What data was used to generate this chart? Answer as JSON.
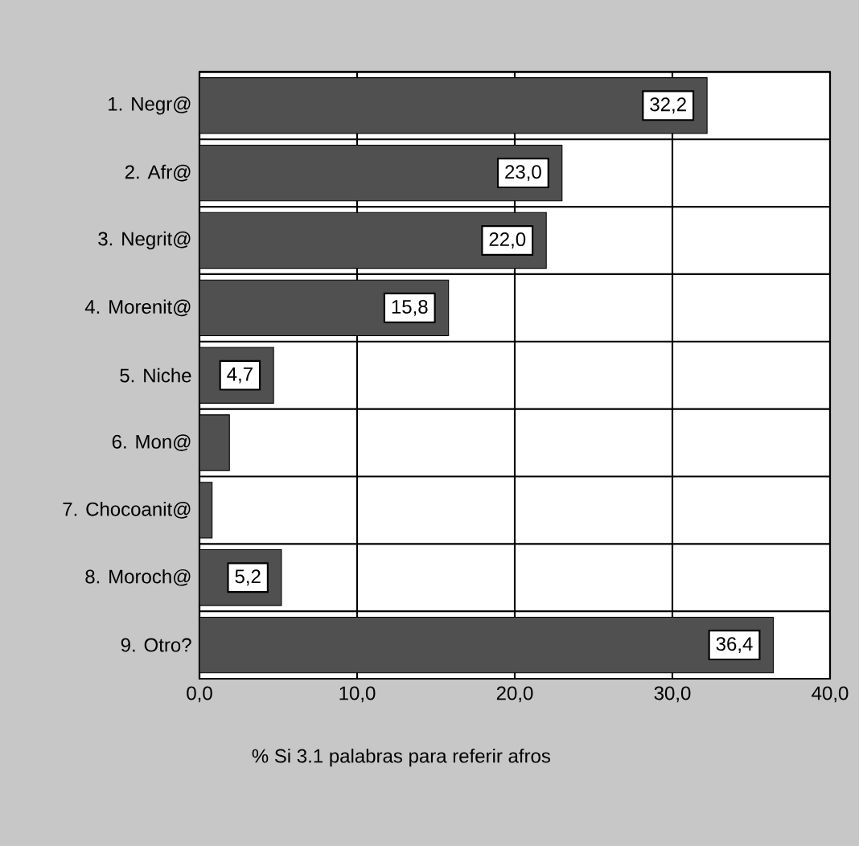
{
  "chart_data": {
    "type": "bar",
    "orientation": "horizontal",
    "xlabel": "% Si 3.1 palabras para referir afros",
    "categories": [
      "1. Negr@",
      "2. Afr@",
      "3. Negrit@",
      "4. Morenit@",
      "5. Niche",
      "6. Mon@",
      "7. Chocoanit@",
      "8. Moroch@",
      "9. Otro?"
    ],
    "values": [
      32.2,
      23.0,
      22.0,
      15.8,
      4.7,
      1.9,
      0.8,
      5.2,
      36.4
    ],
    "value_labels": [
      "32,2",
      "23,0",
      "22,0",
      "15,8",
      "4,7",
      null,
      null,
      "5,2",
      "36,4"
    ],
    "color": "#505050",
    "xlim": [
      0,
      40
    ],
    "xticks": [
      {
        "value": 0,
        "label": "0,0"
      },
      {
        "value": 10,
        "label": "10,0"
      },
      {
        "value": 20,
        "label": "20,0"
      },
      {
        "value": 30,
        "label": "30,0"
      },
      {
        "value": 40,
        "label": "40,0"
      }
    ],
    "grid": true
  }
}
